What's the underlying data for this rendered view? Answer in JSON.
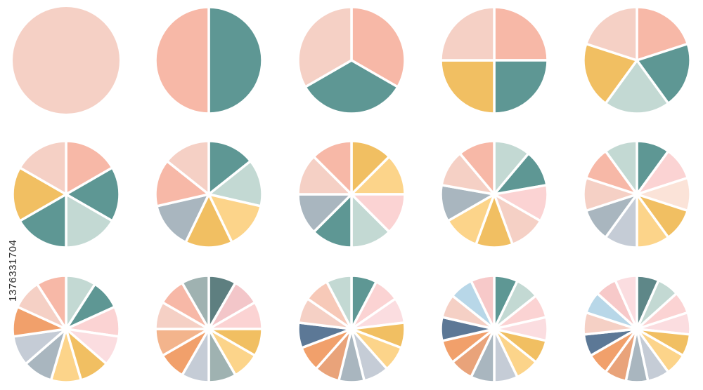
{
  "image_id": "1376331704",
  "pies": [
    {
      "segments": [
        "#f5d0c5"
      ]
    },
    {
      "segments": [
        "#5e9794",
        "#f7b8a7"
      ]
    },
    {
      "segments": [
        "#f7b8a7",
        "#5e9794",
        "#f5d0c5"
      ]
    },
    {
      "segments": [
        "#f7b8a7",
        "#5e9794",
        "#f1bf62",
        "#f5d0c5"
      ]
    },
    {
      "segments": [
        "#f7b8a7",
        "#5e9794",
        "#c3d9d3",
        "#f1bf62",
        "#f5d0c5"
      ]
    },
    {
      "segments": [
        "#f7b8a7",
        "#5e9794",
        "#c3d9d3",
        "#5e9794",
        "#f1bf62",
        "#f5d0c5"
      ]
    },
    {
      "segments": [
        "#5e9794",
        "#c3d9d3",
        "#fcd48a",
        "#f1bf62",
        "#a9b6bf",
        "#f7b8a7",
        "#f5d0c5"
      ]
    },
    {
      "segments": [
        "#f1bf62",
        "#fcd48a",
        "#fbd3d3",
        "#c3d9d3",
        "#5e9794",
        "#a9b6bf",
        "#f5d0c5",
        "#f7b8a7"
      ]
    },
    {
      "segments": [
        "#c3d9d3",
        "#5e9794",
        "#fbd3d3",
        "#f5d0c5",
        "#f1bf62",
        "#fcd48a",
        "#a9b6bf",
        "#f5d0c5",
        "#f7b8a7"
      ]
    },
    {
      "segments": [
        "#5e9794",
        "#fbd3d3",
        "#fbe3d8",
        "#f1bf62",
        "#fcd48a",
        "#c5ccd6",
        "#a9b6bf",
        "#f5d0c5",
        "#f7b8a7",
        "#c3d9d3"
      ]
    },
    {
      "segments": [
        "#c3d9d3",
        "#5e9794",
        "#fbd3d3",
        "#fbdde0",
        "#f1bf62",
        "#fcd48a",
        "#a9b6bf",
        "#c5ccd6",
        "#f1a06b",
        "#f5d0c5",
        "#f7b8a7"
      ]
    },
    {
      "segments": [
        "#5e7f80",
        "#f3c6c9",
        "#fbd3d3",
        "#f1bf62",
        "#fcd48a",
        "#9fb2b1",
        "#c5ccd6",
        "#f1a06b",
        "#f3b48c",
        "#f5d0c5",
        "#f7b8a7",
        "#9fb2b1"
      ]
    },
    {
      "segments": [
        "#5e9794",
        "#fbd3d3",
        "#fbdde0",
        "#f1bf62",
        "#fcd48a",
        "#c5ccd6",
        "#a9b6bf",
        "#e9a37a",
        "#f1a06b",
        "#5c7896",
        "#f5d0c5",
        "#f7c9b8",
        "#c3d9d3"
      ]
    },
    {
      "segments": [
        "#5e9794",
        "#c3d9d3",
        "#fbd3d3",
        "#fbdde0",
        "#f1bf62",
        "#fcd48a",
        "#c5ccd6",
        "#a9b6bf",
        "#e9a37a",
        "#f1a06b",
        "#5c7896",
        "#f5d0c5",
        "#b8d7e8",
        "#f7c9c9"
      ]
    },
    {
      "segments": [
        "#5e8788",
        "#c3d9d3",
        "#fbd3d3",
        "#fbdde0",
        "#f1bf62",
        "#fcd48a",
        "#c5ccd6",
        "#a9b6bf",
        "#e9a37a",
        "#f1a06b",
        "#5c7896",
        "#f5d0c5",
        "#b8d7e8",
        "#f7c9c9",
        "#fbdde0"
      ]
    }
  ]
}
